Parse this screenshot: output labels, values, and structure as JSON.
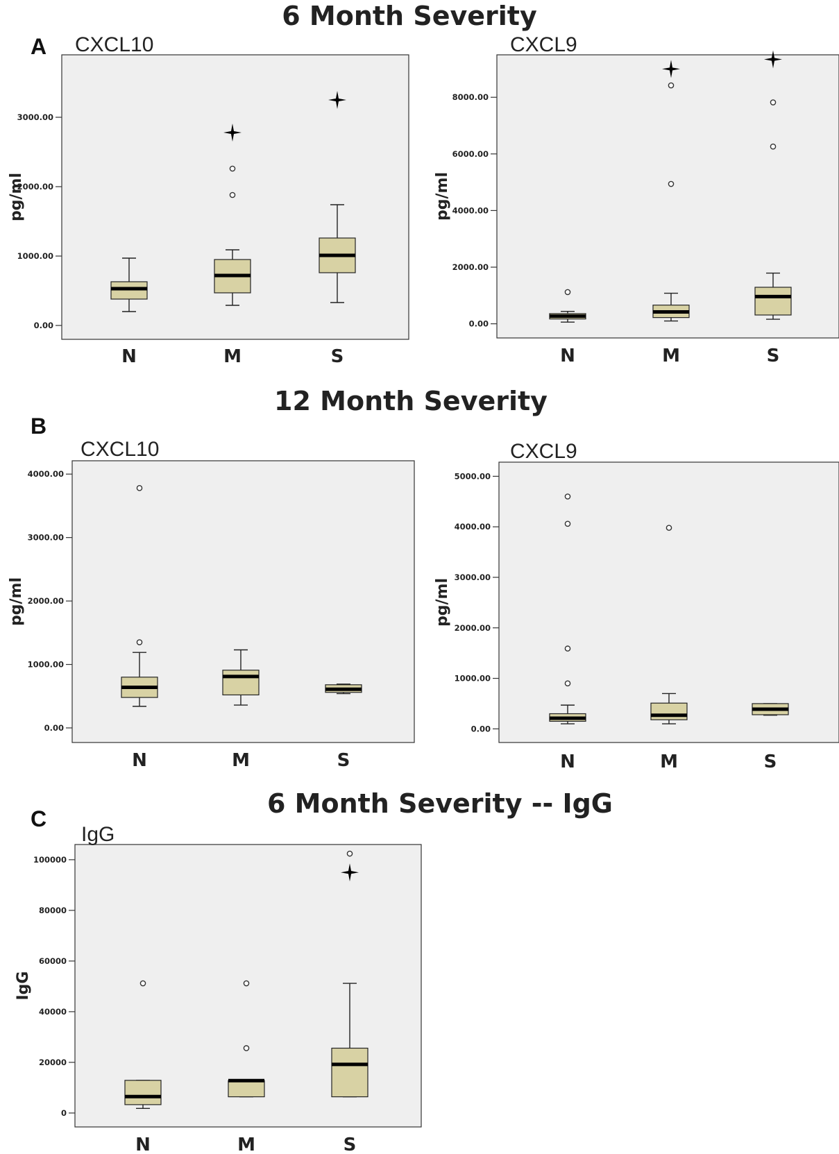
{
  "sections": [
    {
      "letter": "A",
      "title": "6 Month Severity"
    },
    {
      "letter": "B",
      "title": "12 Month Severity"
    },
    {
      "letter": "C",
      "title": "6 Month Severity -- IgG"
    }
  ],
  "chart_data": [
    {
      "type": "box",
      "section": "A",
      "title": "CXCL10",
      "ylabel": "pg/ml",
      "categories": [
        "N",
        "M",
        "S"
      ],
      "ylim": [
        -200,
        3900
      ],
      "yticks": [
        0,
        1000,
        2000,
        3000
      ],
      "ytick_labels": [
        "0.00",
        "1000.00",
        "2000.00",
        "3000.00"
      ],
      "boxes": [
        {
          "category": "N",
          "whisker_low": 200,
          "q1": 380,
          "median": 530,
          "q3": 630,
          "whisker_high": 970,
          "outliers": [],
          "extremes": []
        },
        {
          "category": "M",
          "whisker_low": 290,
          "q1": 470,
          "median": 720,
          "q3": 950,
          "whisker_high": 1090,
          "outliers": [
            1880,
            2260
          ],
          "extremes": [
            2780
          ]
        },
        {
          "category": "S",
          "whisker_low": 330,
          "q1": 760,
          "median": 1010,
          "q3": 1260,
          "whisker_high": 1740,
          "outliers": [],
          "extremes": [
            3250
          ]
        }
      ]
    },
    {
      "type": "box",
      "section": "A",
      "title": "CXCL9",
      "ylabel": "pg/ml",
      "categories": [
        "N",
        "M",
        "S"
      ],
      "ylim": [
        -500,
        9500
      ],
      "yticks": [
        0,
        2000,
        4000,
        6000,
        8000
      ],
      "ytick_labels": [
        "0.00",
        "2000.00",
        "4000.00",
        "6000.00",
        "8000.00"
      ],
      "boxes": [
        {
          "category": "N",
          "whisker_low": 60,
          "q1": 170,
          "median": 270,
          "q3": 360,
          "whisker_high": 440,
          "outliers": [
            1120
          ],
          "extremes": []
        },
        {
          "category": "M",
          "whisker_low": 100,
          "q1": 220,
          "median": 420,
          "q3": 660,
          "whisker_high": 1080,
          "outliers": [
            4940,
            8420
          ],
          "extremes": [
            9000
          ]
        },
        {
          "category": "S",
          "whisker_low": 160,
          "q1": 310,
          "median": 960,
          "q3": 1290,
          "whisker_high": 1790,
          "outliers": [
            6260,
            7820
          ],
          "extremes": [
            9340
          ]
        }
      ]
    },
    {
      "type": "box",
      "section": "B",
      "title": "CXCL10",
      "ylabel": "pg/ml",
      "categories": [
        "N",
        "M",
        "S"
      ],
      "ylim": [
        -230,
        4210
      ],
      "yticks": [
        0,
        1000,
        2000,
        3000,
        4000
      ],
      "ytick_labels": [
        "0.00",
        "1000.00",
        "2000.00",
        "3000.00",
        "4000.00"
      ],
      "boxes": [
        {
          "category": "N",
          "whisker_low": 340,
          "q1": 480,
          "median": 640,
          "q3": 800,
          "whisker_high": 1190,
          "outliers": [
            1350,
            3780
          ],
          "extremes": []
        },
        {
          "category": "M",
          "whisker_low": 360,
          "q1": 520,
          "median": 810,
          "q3": 910,
          "whisker_high": 1230,
          "outliers": [],
          "extremes": []
        },
        {
          "category": "S",
          "whisker_low": 540,
          "q1": 560,
          "median": 610,
          "q3": 680,
          "whisker_high": 690,
          "outliers": [],
          "extremes": []
        }
      ]
    },
    {
      "type": "box",
      "section": "B",
      "title": "CXCL9",
      "ylabel": "pg/ml",
      "categories": [
        "N",
        "M",
        "S"
      ],
      "ylim": [
        -270,
        5280
      ],
      "yticks": [
        0,
        1000,
        2000,
        3000,
        4000,
        5000
      ],
      "ytick_labels": [
        "0.00",
        "1000.00",
        "2000.00",
        "3000.00",
        "4000.00",
        "5000.00"
      ],
      "boxes": [
        {
          "category": "N",
          "whisker_low": 100,
          "q1": 150,
          "median": 210,
          "q3": 300,
          "whisker_high": 470,
          "outliers": [
            900,
            1590,
            4060,
            4600
          ],
          "extremes": []
        },
        {
          "category": "M",
          "whisker_low": 100,
          "q1": 180,
          "median": 270,
          "q3": 510,
          "whisker_high": 700,
          "outliers": [
            3980
          ],
          "extremes": []
        },
        {
          "category": "S",
          "whisker_low": 270,
          "q1": 280,
          "median": 390,
          "q3": 500,
          "whisker_high": 500,
          "outliers": [],
          "extremes": []
        }
      ]
    },
    {
      "type": "box",
      "section": "C",
      "title": "IgG",
      "ylabel": "IgG",
      "categories": [
        "N",
        "M",
        "S"
      ],
      "ylim": [
        -5500,
        106000
      ],
      "yticks": [
        0,
        20000,
        40000,
        60000,
        80000,
        100000
      ],
      "ytick_labels": [
        "0",
        "20000",
        "40000",
        "60000",
        "80000",
        "100000"
      ],
      "boxes": [
        {
          "category": "N",
          "whisker_low": 1800,
          "q1": 3300,
          "median": 6500,
          "q3": 12900,
          "whisker_high": 12900,
          "outliers": [
            51200
          ],
          "extremes": []
        },
        {
          "category": "M",
          "whisker_low": 6400,
          "q1": 6400,
          "median": 12800,
          "q3": 12800,
          "whisker_high": 12800,
          "outliers": [
            25600,
            51200
          ],
          "extremes": []
        },
        {
          "category": "S",
          "whisker_low": 6400,
          "q1": 6400,
          "median": 19200,
          "q3": 25600,
          "whisker_high": 51200,
          "outliers": [
            102400
          ],
          "extremes": [
            95000
          ]
        }
      ]
    }
  ]
}
